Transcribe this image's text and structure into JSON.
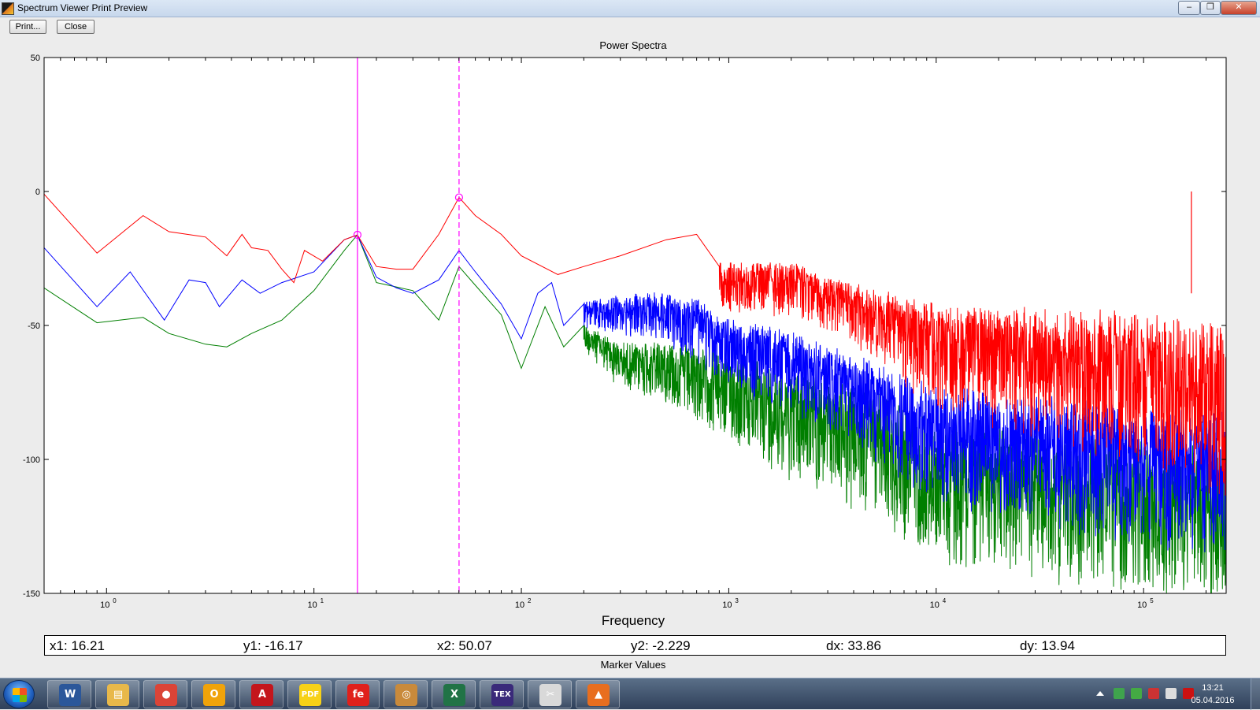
{
  "window": {
    "title": "Spectrum Viewer Print Preview",
    "minimize_glyph": "–",
    "restore_glyph": "❐",
    "close_glyph": "✕"
  },
  "toolbar": {
    "print_label": "Print...",
    "close_label": "Close"
  },
  "chart_data": {
    "type": "line",
    "title": "Power Spectra",
    "xlabel": "Frequency",
    "ylabel": "",
    "xscale": "log",
    "xlim": [
      0.5,
      250000
    ],
    "ylim": [
      -150,
      50
    ],
    "yticks": [
      50,
      0,
      -50,
      -100,
      -150
    ],
    "xticks": [
      1,
      10,
      100,
      1000,
      10000,
      100000
    ],
    "xtick_labels": [
      {
        "base": "10",
        "exp": "0"
      },
      {
        "base": "10",
        "exp": "1"
      },
      {
        "base": "10",
        "exp": "2"
      },
      {
        "base": "10",
        "exp": "3"
      },
      {
        "base": "10",
        "exp": "4"
      },
      {
        "base": "10",
        "exp": "5"
      }
    ],
    "grid": false,
    "series": [
      {
        "color": "#ff0000",
        "points": [
          [
            0.5,
            -1
          ],
          [
            0.9,
            -23
          ],
          [
            1.5,
            -9
          ],
          [
            2,
            -15
          ],
          [
            3,
            -17
          ],
          [
            3.8,
            -24
          ],
          [
            4.5,
            -16
          ],
          [
            5,
            -21
          ],
          [
            6,
            -22
          ],
          [
            7,
            -29
          ],
          [
            8,
            -34
          ],
          [
            9,
            -22
          ],
          [
            11,
            -26
          ],
          [
            14,
            -18
          ],
          [
            16.2,
            -16.2
          ],
          [
            20,
            -28
          ],
          [
            25,
            -29
          ],
          [
            30,
            -29
          ],
          [
            40,
            -16
          ],
          [
            50.07,
            -2.2
          ],
          [
            60,
            -9
          ],
          [
            80,
            -16
          ],
          [
            100,
            -24
          ],
          [
            150,
            -31
          ],
          [
            200,
            -28
          ],
          [
            300,
            -24
          ],
          [
            500,
            -18
          ],
          [
            700,
            -16
          ],
          [
            900,
            -28
          ],
          [
            2000,
            -28
          ],
          [
            4000,
            -36
          ],
          [
            10000,
            -45
          ],
          [
            100000,
            -50
          ],
          [
            250000,
            -55
          ]
        ],
        "noise": [
          [
            900,
            10
          ],
          [
            4000,
            12
          ],
          [
            10000,
            22
          ],
          [
            50000,
            28
          ],
          [
            250000,
            35
          ]
        ]
      },
      {
        "color": "#0000ff",
        "points": [
          [
            0.5,
            -21
          ],
          [
            0.9,
            -43
          ],
          [
            1.3,
            -30
          ],
          [
            1.9,
            -48
          ],
          [
            2.5,
            -33
          ],
          [
            3,
            -34
          ],
          [
            3.5,
            -43
          ],
          [
            4.5,
            -33
          ],
          [
            5.5,
            -38
          ],
          [
            7,
            -34
          ],
          [
            10,
            -30
          ],
          [
            14,
            -18
          ],
          [
            16.2,
            -16.2
          ],
          [
            20,
            -32
          ],
          [
            25,
            -36
          ],
          [
            30,
            -38
          ],
          [
            40,
            -33
          ],
          [
            50,
            -22
          ],
          [
            60,
            -30
          ],
          [
            80,
            -42
          ],
          [
            100,
            -55
          ],
          [
            120,
            -38
          ],
          [
            140,
            -34
          ],
          [
            160,
            -50
          ],
          [
            200,
            -42
          ],
          [
            300,
            -40
          ],
          [
            500,
            -39
          ],
          [
            700,
            -42
          ],
          [
            900,
            -48
          ],
          [
            2000,
            -55
          ],
          [
            5000,
            -66
          ],
          [
            10000,
            -76
          ],
          [
            50000,
            -82
          ],
          [
            250000,
            -87
          ]
        ],
        "noise": [
          [
            200,
            6
          ],
          [
            900,
            14
          ],
          [
            3000,
            18
          ],
          [
            10000,
            24
          ],
          [
            250000,
            30
          ]
        ]
      },
      {
        "color": "#007f00",
        "points": [
          [
            0.5,
            -36
          ],
          [
            0.9,
            -49
          ],
          [
            1.5,
            -47
          ],
          [
            2,
            -53
          ],
          [
            3,
            -57
          ],
          [
            3.8,
            -58
          ],
          [
            5,
            -53
          ],
          [
            7,
            -48
          ],
          [
            10,
            -37
          ],
          [
            14,
            -22
          ],
          [
            16.2,
            -16.2
          ],
          [
            20,
            -34
          ],
          [
            30,
            -37
          ],
          [
            40,
            -48
          ],
          [
            50,
            -28
          ],
          [
            60,
            -35
          ],
          [
            80,
            -46
          ],
          [
            100,
            -66
          ],
          [
            130,
            -43
          ],
          [
            160,
            -58
          ],
          [
            200,
            -50
          ],
          [
            300,
            -58
          ],
          [
            500,
            -57
          ],
          [
            900,
            -62
          ],
          [
            2000,
            -70
          ],
          [
            5000,
            -78
          ],
          [
            10000,
            -90
          ],
          [
            50000,
            -96
          ],
          [
            250000,
            -100
          ]
        ],
        "noise": [
          [
            200,
            6
          ],
          [
            900,
            18
          ],
          [
            3000,
            24
          ],
          [
            10000,
            28
          ],
          [
            250000,
            32
          ]
        ]
      }
    ],
    "spike": {
      "x": 170000,
      "y_top": 0,
      "y_bottom": -38,
      "color": "#ff0000"
    },
    "markers": [
      {
        "x": 16.21,
        "y": -16.17,
        "style": "solid",
        "color": "#ff00ff"
      },
      {
        "x": 50.07,
        "y": -2.229,
        "style": "dashed",
        "color": "#ff00ff"
      }
    ]
  },
  "marker_values": {
    "title": "Marker Values",
    "x1": "x1: 16.21",
    "y1": "y1: -16.17",
    "x2": "x2: 50.07",
    "y2": "y2: -2.229",
    "dx": "dx: 33.86",
    "dy": "dy: 13.94"
  },
  "taskbar": {
    "apps": [
      {
        "name": "word",
        "glyph": "W",
        "color": "#2b579a"
      },
      {
        "name": "explorer",
        "glyph": "▤",
        "color": "#e8b84a"
      },
      {
        "name": "chrome",
        "glyph": "●",
        "color": "#db4437"
      },
      {
        "name": "outlook",
        "glyph": "O",
        "color": "#f0a30a"
      },
      {
        "name": "acrobat",
        "glyph": "A",
        "color": "#c4161c"
      },
      {
        "name": "pdf-creator",
        "glyph": "PDF",
        "color": "#f7d117"
      },
      {
        "name": "app-red",
        "glyph": "fe",
        "color": "#e0201b"
      },
      {
        "name": "app-globe",
        "glyph": "◎",
        "color": "#c98a3b"
      },
      {
        "name": "excel",
        "glyph": "X",
        "color": "#217346"
      },
      {
        "name": "tex",
        "glyph": "TEX",
        "color": "#3a2a7a"
      },
      {
        "name": "snipping-tool",
        "glyph": "✂",
        "color": "#d9d9d9"
      },
      {
        "name": "matlab",
        "glyph": "▲",
        "color": "#e86e1f"
      }
    ],
    "tray_colors": [
      "#3fa34d",
      "#44aa44",
      "#cc3333",
      "#dddddd",
      "#cc1111"
    ],
    "clock_time": "13:21",
    "clock_date": "05.04.2016"
  }
}
